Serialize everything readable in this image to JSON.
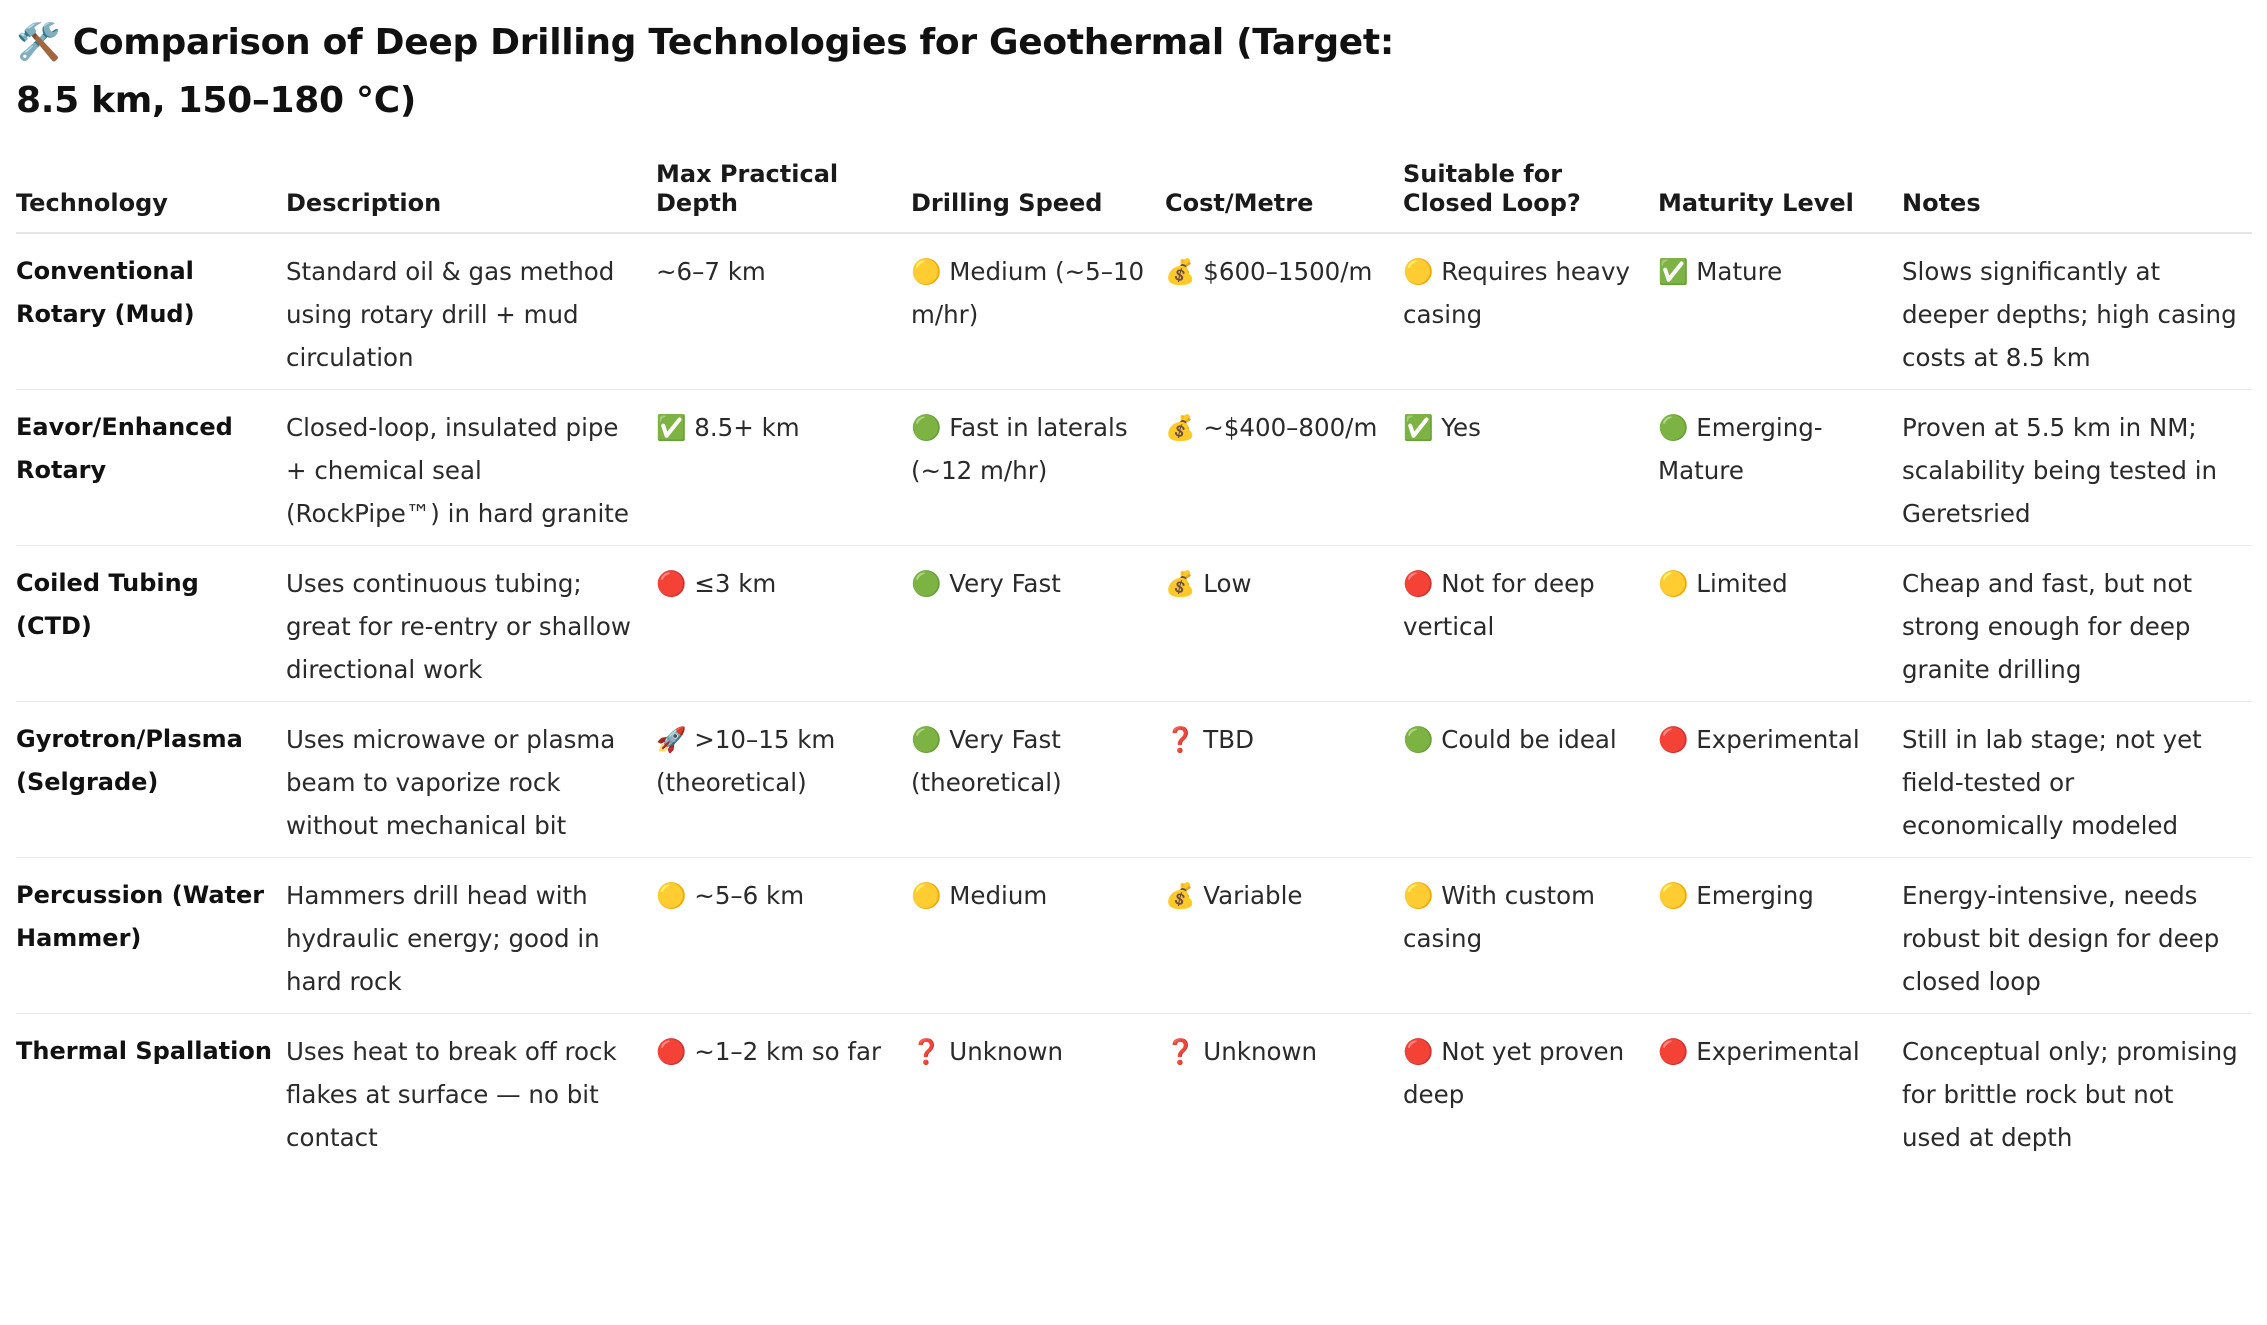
{
  "title": "🛠️ Comparison of Deep Drilling Technologies for Geothermal (Target: 8.5 km, 150–180 °C)",
  "table": {
    "headers": [
      "Technology",
      "Description",
      "Max Practical Depth",
      "Drilling Speed",
      "Cost/Metre",
      "Suitable for Closed Loop?",
      "Maturity Level",
      "Notes"
    ],
    "rows": [
      {
        "technology": "Conventional Rotary (Mud)",
        "description": "Standard oil & gas method using rotary drill + mud circulation",
        "depth": "~6–7 km",
        "speed": "🟡 Medium (~5–10 m/hr)",
        "cost": "💰 $600–1500/m",
        "closed_loop": "🟡 Requires heavy casing",
        "maturity": "✅ Mature",
        "notes": "Slows significantly at deeper depths; high casing costs at 8.5 km"
      },
      {
        "technology": "Eavor/Enhanced Rotary",
        "description": "Closed-loop, insulated pipe + chemical seal (RockPipe™) in hard granite",
        "depth": "✅ 8.5+ km",
        "speed": "🟢 Fast in laterals (~12 m/hr)",
        "cost": "💰 ~$400–800/m",
        "closed_loop": "✅ Yes",
        "maturity": "🟢 Emerging-Mature",
        "notes": "Proven at 5.5 km in NM; scalability being tested in Geretsried"
      },
      {
        "technology": "Coiled Tubing (CTD)",
        "description": "Uses continuous tubing; great for re-entry or shallow directional work",
        "depth": "🔴 ≤3 km",
        "speed": "🟢 Very Fast",
        "cost": "💰 Low",
        "closed_loop": "🔴 Not for deep vertical",
        "maturity": "🟡 Limited",
        "notes": "Cheap and fast, but not strong enough for deep granite drilling"
      },
      {
        "technology": "Gyrotron/Plasma (Selgrade)",
        "description": "Uses microwave or plasma beam to vaporize rock without mechanical bit",
        "depth": "🚀 >10–15 km (theoretical)",
        "speed": "🟢 Very Fast (theoretical)",
        "cost": "❓ TBD",
        "closed_loop": "🟢 Could be ideal",
        "maturity": "🔴 Experimental",
        "notes": "Still in lab stage; not yet field-tested or economically modeled"
      },
      {
        "technology": "Percussion (Water Hammer)",
        "description": "Hammers drill head with hydraulic energy; good in hard rock",
        "depth": "🟡 ~5–6 km",
        "speed": "🟡 Medium",
        "cost": "💰 Variable",
        "closed_loop": "🟡 With custom casing",
        "maturity": "🟡 Emerging",
        "notes": "Energy-intensive, needs robust bit design for deep closed loop"
      },
      {
        "technology": "Thermal Spallation",
        "description": "Uses heat to break off rock flakes at surface — no bit contact",
        "depth": "🔴 ~1–2 km so far",
        "speed": "❓ Unknown",
        "cost": "❓ Unknown",
        "closed_loop": "🔴 Not yet proven deep",
        "maturity": "🔴 Experimental",
        "notes": "Conceptual only; promising for brittle rock but not used at depth"
      }
    ]
  }
}
